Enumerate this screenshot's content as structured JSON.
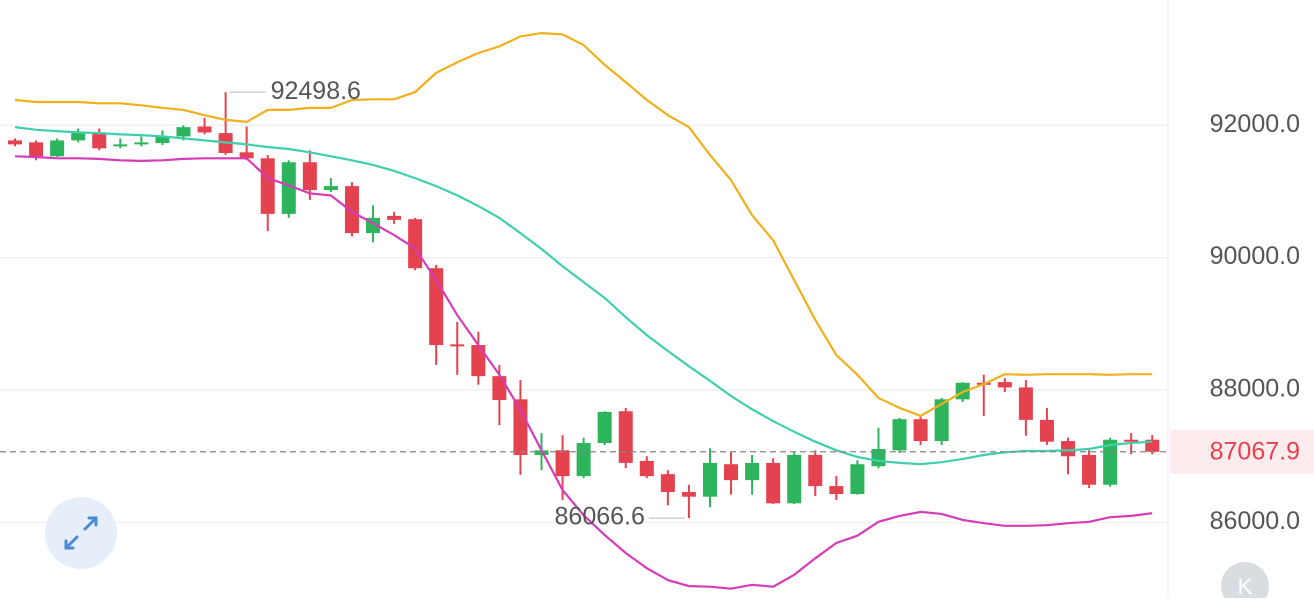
{
  "chart_data": {
    "type": "candlestick",
    "ylim": [
      84860,
      93890
    ],
    "yticks": [
      {
        "value": 86000,
        "label": "86000.0"
      },
      {
        "value": 88000,
        "label": "88000.0"
      },
      {
        "value": 90000,
        "label": "90000.0"
      },
      {
        "value": 92000,
        "label": "92000.0"
      }
    ],
    "grid": true,
    "up_color": "#2db55d",
    "down_color": "#e5424f",
    "open": [
      91770,
      91740,
      91530,
      91770,
      91890,
      91680,
      91710,
      91730,
      91830,
      91980,
      91880,
      91590,
      91500,
      90660,
      91440,
      91020,
      91080,
      90370,
      90630,
      90580,
      89840,
      88690,
      88680,
      88210,
      87860,
      87020,
      87090,
      86700,
      87200,
      87680,
      86930,
      86730,
      86460,
      86390,
      86880,
      86640,
      86900,
      86290,
      87020,
      86550,
      86430,
      86850,
      87090,
      87560,
      87230,
      87860,
      88110,
      88120,
      88040,
      87550,
      87230,
      87020,
      86570,
      87250,
      87250
    ],
    "high": [
      91800,
      91770,
      91800,
      91950,
      91950,
      91800,
      91830,
      91920,
      92000,
      92110,
      92498.6,
      91980,
      91550,
      91470,
      91620,
      91200,
      91140,
      90790,
      90690,
      90600,
      89890,
      89030,
      88880,
      88380,
      88150,
      87350,
      87320,
      87280,
      87680,
      87730,
      87000,
      86790,
      86570,
      87120,
      87060,
      87020,
      86970,
      87060,
      87090,
      86700,
      86940,
      87430,
      87580,
      87610,
      87880,
      88120,
      88230,
      88180,
      88150,
      87730,
      87280,
      87090,
      87280,
      87350,
      87320
    ],
    "low": [
      91680,
      91470,
      91520,
      91740,
      91620,
      91650,
      91680,
      91700,
      91770,
      91860,
      91550,
      91470,
      90400,
      90600,
      90870,
      90990,
      90320,
      90230,
      90510,
      89810,
      88380,
      88230,
      88080,
      87470,
      86720,
      86790,
      86340,
      86670,
      87170,
      86820,
      86670,
      86260,
      86066.6,
      86230,
      86420,
      86420,
      86280,
      86280,
      86400,
      86340,
      86420,
      86820,
      87050,
      87170,
      87170,
      87820,
      87610,
      87970,
      87310,
      87170,
      86730,
      86520,
      86540,
      87030,
      87030
    ],
    "close": [
      91710,
      91530,
      91770,
      91890,
      91650,
      91710,
      91740,
      91830,
      91970,
      91890,
      91580,
      91500,
      90660,
      91440,
      91020,
      91080,
      90370,
      90600,
      90570,
      89840,
      88680,
      88660,
      88210,
      87850,
      87020,
      87090,
      86700,
      87200,
      87670,
      86900,
      86700,
      86460,
      86390,
      86900,
      86640,
      86900,
      86290,
      87020,
      86550,
      86430,
      86880,
      87110,
      87560,
      87230,
      87860,
      88110,
      88080,
      88040,
      87550,
      87220,
      87000,
      86570,
      87250,
      87230,
      87067.9
    ],
    "bands": [
      {
        "color": "#f0b01c",
        "values": [
          92380,
          92350,
          92350,
          92350,
          92330,
          92330,
          92300,
          92260,
          92230,
          92150,
          92080,
          92050,
          92230,
          92230,
          92260,
          92260,
          92380,
          92390,
          92390,
          92500,
          92790,
          92950,
          93090,
          93190,
          93340,
          93390,
          93370,
          93210,
          92910,
          92650,
          92380,
          92150,
          91970,
          91550,
          91170,
          90640,
          90260,
          89660,
          89060,
          88530,
          88230,
          87880,
          87730,
          87610,
          87790,
          87970,
          88090,
          88240,
          88230,
          88240,
          88240,
          88240,
          88230,
          88240,
          88240
        ]
      },
      {
        "color": "#3fcfad",
        "values": [
          91970,
          91930,
          91910,
          91890,
          91880,
          91860,
          91850,
          91830,
          91800,
          91770,
          91740,
          91710,
          91670,
          91640,
          91590,
          91530,
          91470,
          91400,
          91310,
          91200,
          91080,
          90940,
          90780,
          90600,
          90370,
          90130,
          89870,
          89630,
          89390,
          89100,
          88830,
          88590,
          88360,
          88140,
          87910,
          87710,
          87530,
          87370,
          87220,
          87090,
          86990,
          86930,
          86900,
          86880,
          86910,
          86960,
          87020,
          87060,
          87080,
          87080,
          87090,
          87110,
          87170,
          87200,
          87220
        ]
      },
      {
        "color": "#d63cb8",
        "values": [
          91530,
          91520,
          91500,
          91500,
          91490,
          91470,
          91460,
          91470,
          91490,
          91500,
          91500,
          91500,
          91200,
          91090,
          90970,
          90940,
          90690,
          90520,
          90340,
          90140,
          89660,
          89130,
          88680,
          88230,
          87700,
          87090,
          86490,
          86110,
          85810,
          85540,
          85310,
          85130,
          85040,
          85030,
          85000,
          85060,
          85030,
          85210,
          85460,
          85690,
          85800,
          86010,
          86100,
          86160,
          86130,
          86040,
          85990,
          85950,
          85950,
          85960,
          85990,
          86010,
          86080,
          86100,
          86140
        ]
      }
    ]
  },
  "controls": {
    "kline_button": "K"
  }
}
